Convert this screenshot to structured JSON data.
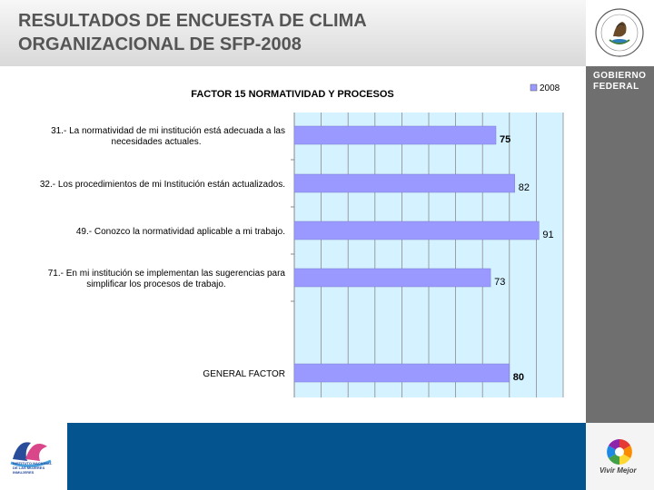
{
  "slide": {
    "title": "RESULTADOS DE ENCUESTA DE CLIMA\nORGANIZACIONAL DE SFP-2008",
    "gov_label": "GOBIERNO\nFEDERAL",
    "vivir_label": "Vivir Mejor",
    "inst_label": "INSTITUTO NACIONAL\nDE LAS MUJERES\nINMUJERES",
    "seal_text": "ESTADOS UNIDOS MEXICANOS"
  },
  "colors": {
    "bar": "#9999ff",
    "plot_bg": "#d4f2ff",
    "footer_blue": "#04558f",
    "panel_gray": "#6f6f6f"
  },
  "chart_data": {
    "type": "bar",
    "orientation": "horizontal",
    "title": "FACTOR  15 NORMATIVIDAD Y PROCESOS",
    "categories": [
      "31.-  La normatividad de mi institución está adecuada a las\nnecesidades actuales.",
      "32.-  Los procedimientos de mi Institución están actualizados.",
      "49.-  Conozco la normatividad aplicable a mi trabajo.",
      "71.-  En mi institución se implementan las sugerencias para\nsimplificar los procesos de trabajo.",
      "GENERAL FACTOR"
    ],
    "series": [
      {
        "name": "2008",
        "values": [
          75,
          82,
          91,
          73,
          80
        ]
      }
    ],
    "xlim": [
      0,
      100
    ],
    "grid": true,
    "legend": "top-right"
  }
}
